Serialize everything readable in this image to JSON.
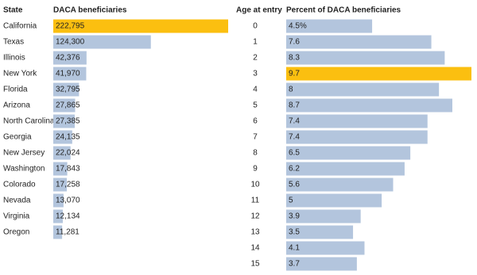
{
  "chart_data": [
    {
      "type": "bar",
      "orientation": "horizontal",
      "category_header": "State",
      "value_header": "DACA beneficiaries",
      "categories": [
        "California",
        "Texas",
        "Illinois",
        "New York",
        "Florida",
        "Arizona",
        "North Carolina",
        "Georgia",
        "New Jersey",
        "Washington",
        "Colorado",
        "Nevada",
        "Virginia",
        "Oregon"
      ],
      "values": [
        222795,
        124300,
        42376,
        41970,
        32795,
        27865,
        27385,
        24135,
        22024,
        17843,
        17258,
        13070,
        12134,
        11281
      ],
      "value_labels": [
        "222,795",
        "124,300",
        "42,376",
        "41,970",
        "32,795",
        "27,865",
        "27,385",
        "24,135",
        "22,024",
        "17,843",
        "17,258",
        "13,070",
        "12,134",
        "11,281"
      ],
      "colors": [
        "#fbbf10",
        "#b3c5dd",
        "#b3c5dd",
        "#b3c5dd",
        "#b3c5dd",
        "#b3c5dd",
        "#b3c5dd",
        "#b3c5dd",
        "#b3c5dd",
        "#b3c5dd",
        "#b3c5dd",
        "#b3c5dd",
        "#b3c5dd",
        "#b3c5dd"
      ],
      "xlim": [
        0,
        222795
      ]
    },
    {
      "type": "bar",
      "orientation": "horizontal",
      "category_header": "Age at entry",
      "value_header": "Percent of DACA beneficiaries",
      "categories": [
        "0",
        "1",
        "2",
        "3",
        "4",
        "5",
        "6",
        "7",
        "8",
        "9",
        "10",
        "11",
        "12",
        "13",
        "14",
        "15"
      ],
      "values": [
        4.5,
        7.6,
        8.3,
        9.7,
        8,
        8.7,
        7.4,
        7.4,
        6.5,
        6.2,
        5.6,
        5,
        3.9,
        3.5,
        4.1,
        3.7
      ],
      "value_labels": [
        "4.5%",
        "7.6",
        "8.3",
        "9.7",
        "8",
        "8.7",
        "7.4",
        "7.4",
        "6.5",
        "6.2",
        "5.6",
        "5",
        "3.9",
        "3.5",
        "4.1",
        "3.7"
      ],
      "colors": [
        "#b3c5dd",
        "#b3c5dd",
        "#b3c5dd",
        "#fbbf10",
        "#b3c5dd",
        "#b3c5dd",
        "#b3c5dd",
        "#b3c5dd",
        "#b3c5dd",
        "#b3c5dd",
        "#b3c5dd",
        "#b3c5dd",
        "#b3c5dd",
        "#b3c5dd",
        "#b3c5dd",
        "#b3c5dd"
      ],
      "xlim": [
        0,
        9.7
      ]
    }
  ]
}
